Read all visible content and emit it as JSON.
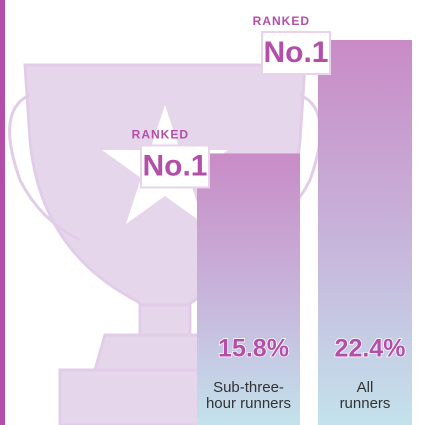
{
  "chart_data": {
    "type": "bar",
    "categories": [
      "Sub-three-\nhour runners",
      "All\nrunners"
    ],
    "values": [
      15.8,
      22.4
    ],
    "value_labels": [
      "15.8%",
      "22.4%"
    ],
    "badges": [
      {
        "label": "RANKED",
        "rank": "No.1"
      },
      {
        "label": "RANKED",
        "rank": "No.1"
      }
    ],
    "color": "#c98bc6"
  }
}
